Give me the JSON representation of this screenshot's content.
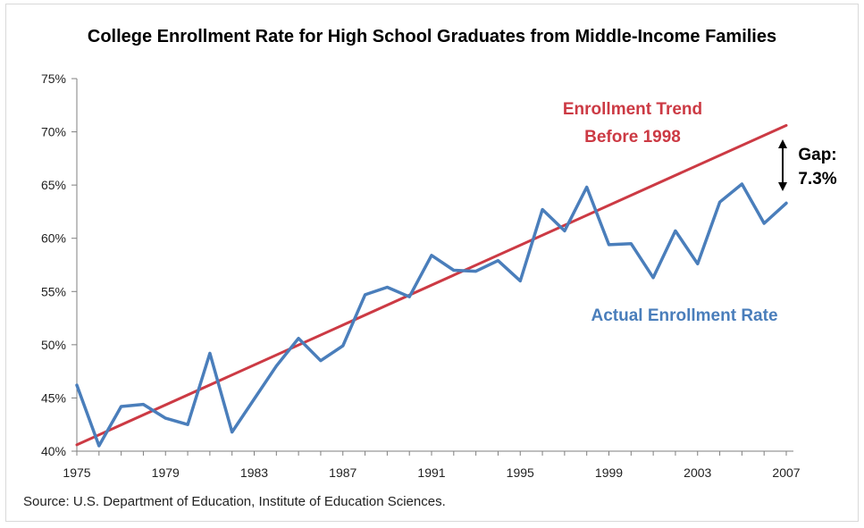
{
  "chart_data": {
    "type": "line",
    "title": "College Enrollment Rate for High School Graduates from Middle-Income Families",
    "source": "Source: U.S. Department of Education, Institute of Education Sciences.",
    "xlabel": "",
    "ylabel": "",
    "xlim": [
      1975,
      2007
    ],
    "ylim": [
      40,
      75
    ],
    "x_ticks": [
      1975,
      1979,
      1983,
      1987,
      1991,
      1995,
      1999,
      2003,
      2007
    ],
    "y_ticks": [
      40,
      45,
      50,
      55,
      60,
      65,
      70,
      75
    ],
    "y_tick_format": "percent",
    "grid": false,
    "series": [
      {
        "name": "Actual Enrollment Rate",
        "color": "#4a7ebb",
        "x": [
          1975,
          1976,
          1977,
          1978,
          1979,
          1980,
          1981,
          1982,
          1983,
          1984,
          1985,
          1986,
          1987,
          1988,
          1989,
          1990,
          1991,
          1992,
          1993,
          1994,
          1995,
          1996,
          1997,
          1998,
          1999,
          2000,
          2001,
          2002,
          2003,
          2004,
          2005,
          2006,
          2007
        ],
        "values": [
          46.2,
          40.5,
          44.2,
          44.4,
          43.1,
          42.5,
          49.2,
          41.8,
          44.9,
          48.0,
          50.6,
          48.5,
          49.9,
          54.7,
          55.4,
          54.5,
          58.4,
          57.0,
          56.9,
          57.9,
          56.0,
          62.7,
          60.7,
          64.8,
          59.4,
          59.5,
          56.3,
          60.7,
          57.6,
          63.4,
          65.1,
          61.4,
          63.3
        ]
      },
      {
        "name": "Enrollment Trend Before 1998",
        "color": "#cc3a44",
        "x": [
          1975,
          2007
        ],
        "values": [
          40.6,
          70.6
        ]
      }
    ],
    "annotations": {
      "trend_label_line1": "Enrollment Trend",
      "trend_label_line2": "Before 1998",
      "actual_label": "Actual Enrollment Rate",
      "gap_label_line1": "Gap:",
      "gap_label_line2": "7.3%"
    }
  }
}
